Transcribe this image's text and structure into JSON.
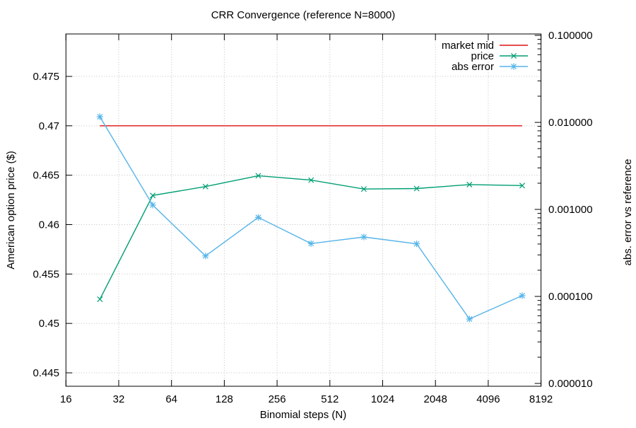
{
  "background": "#ffffff",
  "chart_data": {
    "type": "line",
    "title": "CRR Convergence (reference N=8000)",
    "xlabel": "Binomial steps (N)",
    "ylabel": "American option price ($)",
    "y2label": "abs. error vs reference",
    "x_scale": "log2",
    "x_ticks": [
      16,
      32,
      64,
      128,
      256,
      512,
      1024,
      2048,
      4096,
      8192
    ],
    "x_tick_labels": [
      "16",
      "32",
      "64",
      "128",
      "256",
      "512",
      "1024",
      "2048",
      "4096",
      "8192"
    ],
    "x_range": [
      16,
      8192
    ],
    "y_axis_side": "left",
    "y_ticks": [
      0.445,
      0.45,
      0.455,
      0.46,
      0.465,
      0.47,
      0.475
    ],
    "y_tick_labels": [
      "0.445",
      "0.45",
      "0.455",
      "0.46",
      "0.465",
      "0.47",
      "0.475"
    ],
    "y_range": [
      0.4436,
      0.4793
    ],
    "y2_scale": "log10",
    "y2_ticks": [
      1e-05,
      0.0001,
      0.001,
      0.01,
      0.1
    ],
    "y2_tick_labels": [
      "0.000010",
      "0.000100",
      "0.001000",
      "0.010000",
      "0.100000"
    ],
    "y2_range": [
      9.4e-06,
      0.104
    ],
    "grid": true,
    "grid_color": "#c0c0c0",
    "legend_position": "top-right-inside",
    "legend_entries": [
      "market mid",
      "price",
      "abs error"
    ],
    "series": [
      {
        "name": "market mid",
        "axis": "y1",
        "color": "#e01010",
        "marker": "none",
        "x": [
          25,
          6400
        ],
        "y": [
          0.47,
          0.47
        ]
      },
      {
        "name": "price",
        "axis": "y1",
        "color": "#009e73",
        "marker": "cross",
        "x": [
          25,
          50,
          100,
          200,
          400,
          800,
          1600,
          3200,
          6400
        ],
        "y": [
          0.45245,
          0.46295,
          0.46385,
          0.46495,
          0.4645,
          0.4636,
          0.46365,
          0.46405,
          0.46395
        ]
      },
      {
        "name": "abs error",
        "axis": "y2",
        "color": "#56b4e9",
        "marker": "asterisk",
        "x": [
          25,
          50,
          100,
          200,
          400,
          800,
          1600,
          3200,
          6400
        ],
        "y": [
          0.0116,
          0.00112,
          0.000292,
          0.000809,
          0.000405,
          0.000482,
          0.000402,
          5.5e-05,
          0.000102
        ]
      }
    ]
  }
}
